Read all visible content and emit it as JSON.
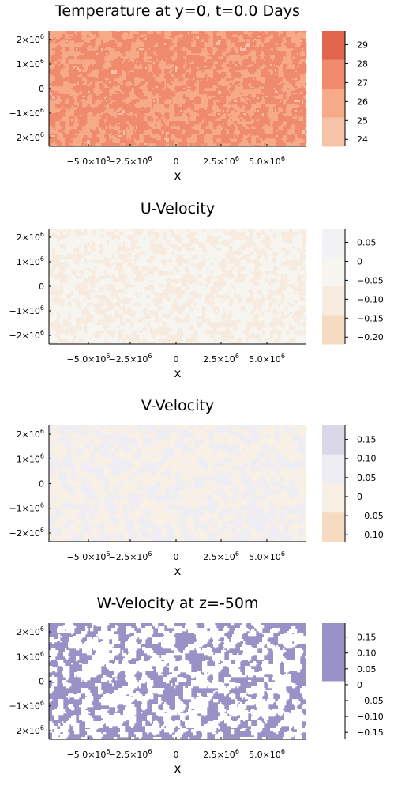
{
  "chart_data": [
    {
      "type": "heatmap",
      "title": "Temperature at y=0, t=0.0 Days",
      "xlabel": "x",
      "xticks": [
        "−5.0×10^6",
        "−2.5×10^6",
        "0",
        "2.5×10^6",
        "5.0×10^6"
      ],
      "yticks": [
        "2×10^6",
        "1×10^6",
        "0",
        "−1×10^6",
        "−2×10^6"
      ],
      "colorbar": {
        "ticks": [
          "29",
          "28",
          "27",
          "26",
          "25",
          "24"
        ],
        "bands": [
          "#e1654d",
          "#ef8a6c",
          "#f7aa88",
          "#f7c3a8"
        ]
      },
      "pattern": {
        "seed": 11,
        "scale": 5.5,
        "thresholds": [
          0.47,
          0.83
        ],
        "colors": [
          "#f7aa88",
          "#ef8a6c",
          "#f4c0a4"
        ]
      }
    },
    {
      "type": "heatmap",
      "title": "U-Velocity",
      "xlabel": "x",
      "xticks": [
        "−5.0×10^6",
        "−2.5×10^6",
        "0",
        "2.5×10^6",
        "5.0×10^6"
      ],
      "yticks": [
        "2×10^6",
        "1×10^6",
        "0",
        "−1×10^6",
        "−2×10^6"
      ],
      "colorbar": {
        "ticks": [
          "0.05",
          "0",
          "−0.05",
          "−0.10",
          "−0.15",
          "−0.20"
        ],
        "bands": [
          "#f2f2f4",
          "#f7f5f0",
          "#f7ebe0",
          "#f5dbc0"
        ]
      },
      "pattern": {
        "seed": 23,
        "scale": 5.0,
        "thresholds": [
          0.55
        ],
        "colors": [
          "#f7f5f0",
          "#f7ebe0"
        ]
      }
    },
    {
      "type": "heatmap",
      "title": "V-Velocity",
      "xlabel": "x",
      "xticks": [
        "−5.0×10^6",
        "−2.5×10^6",
        "0",
        "2.5×10^6",
        "5.0×10^6"
      ],
      "yticks": [
        "2×10^6",
        "1×10^6",
        "0",
        "−1×10^6",
        "−2×10^6"
      ],
      "colorbar": {
        "ticks": [
          "0.15",
          "0.10",
          "0.05",
          "0",
          "−0.05",
          "−0.10"
        ],
        "bands": [
          "#dad8e8",
          "#eeedf4",
          "#f7efe4",
          "#f5dbbf"
        ]
      },
      "pattern": {
        "seed": 37,
        "scale": 6.0,
        "thresholds": [
          0.5
        ],
        "colors": [
          "#eeedf4",
          "#f8f0e4"
        ]
      }
    },
    {
      "type": "heatmap",
      "title": "W-Velocity at z=-50m",
      "xlabel": "x",
      "xticks": [
        "−5.0×10^6",
        "−2.5×10^6",
        "0",
        "2.5×10^6",
        "5.0×10^6"
      ],
      "yticks": [
        "2×10^6",
        "1×10^6",
        "0",
        "−1×10^6",
        "−2×10^6"
      ],
      "colorbar": {
        "ticks": [
          "0.15",
          "0.10",
          "0.05",
          "0",
          "−0.05",
          "−0.10",
          "−0.15"
        ],
        "bands": [
          "#9992c6",
          "#9992c6",
          "#9992c6",
          "#ffffff",
          "#ffffff",
          "#ffffff"
        ]
      },
      "pattern": {
        "seed": 53,
        "scale": 7.0,
        "thresholds": [
          0.48
        ],
        "colors": [
          "#9992c6",
          "#ffffff"
        ]
      }
    }
  ]
}
